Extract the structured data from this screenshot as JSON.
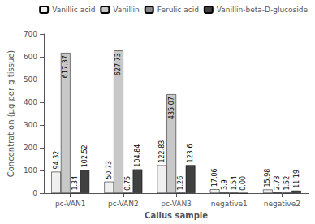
{
  "chart_data": {
    "type": "bar",
    "xlabel": "Callus sample",
    "ylabel": "Concentration (μg per g tissue)",
    "categories": [
      "pc-VAN1",
      "pc-VAN2",
      "pc-VAN3",
      "negative1",
      "negative2"
    ],
    "series": [
      {
        "name": "Vanillic acid",
        "color": "#f0f0f0",
        "values": [
          94.32,
          50.73,
          122.83,
          17.06,
          15.98
        ]
      },
      {
        "name": "Vanillin",
        "color": "#c8c8c8",
        "values": [
          617.37,
          627.73,
          435.07,
          3.9,
          2.73
        ]
      },
      {
        "name": "Ferulic acid",
        "color": "#888888",
        "values": [
          1.34,
          0.75,
          1.26,
          1.54,
          1.52
        ]
      },
      {
        "name": "Vanillin-beta-D-glucoside",
        "color": "#404040",
        "values": [
          102.52,
          104.84,
          123.6,
          0,
          11.19
        ],
        "value_labels": [
          "102.52",
          "104.84",
          "123.6",
          "0.00",
          "11.19"
        ]
      }
    ],
    "ylim": [
      0,
      700
    ],
    "yticks": [
      0,
      100,
      200,
      300,
      400,
      500,
      600,
      700
    ],
    "grid": false,
    "legend": "upper right",
    "data_labels": true
  }
}
